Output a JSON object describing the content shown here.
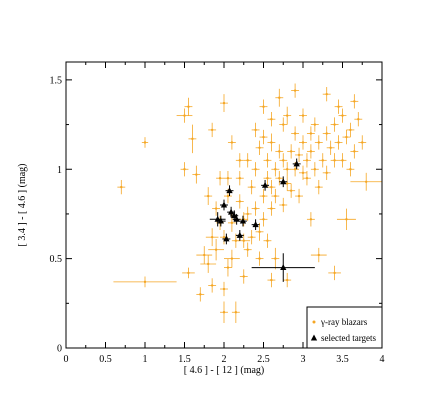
{
  "chart_data": {
    "type": "scatter",
    "xlabel": "[ 4.6 ] - [ 12 ] (mag)",
    "ylabel": "[ 3.4 ] - [ 4.6 ] (mag)",
    "xlim": [
      0,
      4
    ],
    "ylim": [
      0,
      1.6
    ],
    "x_ticks": [
      "0",
      "0.5",
      "1",
      "1.5",
      "2",
      "2.5",
      "3",
      "3.5",
      "4"
    ],
    "y_ticks": [
      "0",
      "0.5",
      "1",
      "1.5"
    ],
    "grid": false,
    "legend_position": "bottom-right",
    "series": [
      {
        "name": "γ-ray blazars",
        "color": "#f5a623",
        "marker": "cross-errorbar",
        "points": [
          [
            0.7,
            0.9,
            0.05,
            0.04
          ],
          [
            1.0,
            1.15,
            0.04,
            0.03
          ],
          [
            1.0,
            0.37,
            0.4,
            0.03
          ],
          [
            1.5,
            1.3,
            0.1,
            0.04
          ],
          [
            1.55,
            1.35,
            0.05,
            0.05
          ],
          [
            1.5,
            1.0,
            0.05,
            0.04
          ],
          [
            1.6,
            1.17,
            0.05,
            0.08
          ],
          [
            1.65,
            0.97,
            0.05,
            0.05
          ],
          [
            1.55,
            0.42,
            0.08,
            0.03
          ],
          [
            1.75,
            0.52,
            0.1,
            0.05
          ],
          [
            1.7,
            0.3,
            0.05,
            0.04
          ],
          [
            1.85,
            1.22,
            0.05,
            0.04
          ],
          [
            1.8,
            0.85,
            0.05,
            0.05
          ],
          [
            1.85,
            0.62,
            0.08,
            0.05
          ],
          [
            1.8,
            0.47,
            0.1,
            0.05
          ],
          [
            1.9,
            0.78,
            0.05,
            0.04
          ],
          [
            1.95,
            0.95,
            0.05,
            0.04
          ],
          [
            1.9,
            0.55,
            0.1,
            0.06
          ],
          [
            2.0,
            1.37,
            0.05,
            0.05
          ],
          [
            2.0,
            0.33,
            0.05,
            0.04
          ],
          [
            2.0,
            0.2,
            0.05,
            0.06
          ],
          [
            2.05,
            0.85,
            0.05,
            0.04
          ],
          [
            2.05,
            0.95,
            0.05,
            0.04
          ],
          [
            2.1,
            0.7,
            0.05,
            0.05
          ],
          [
            2.1,
            0.5,
            0.1,
            0.05
          ],
          [
            2.15,
            0.2,
            0.05,
            0.06
          ],
          [
            2.2,
            0.82,
            0.05,
            0.04
          ],
          [
            2.2,
            0.95,
            0.05,
            0.04
          ],
          [
            2.25,
            0.6,
            0.08,
            0.04
          ],
          [
            2.3,
            1.05,
            0.05,
            0.04
          ],
          [
            2.3,
            0.75,
            0.05,
            0.04
          ],
          [
            2.35,
            0.9,
            0.05,
            0.04
          ],
          [
            2.4,
            1.0,
            0.05,
            0.04
          ],
          [
            2.4,
            0.78,
            0.05,
            0.04
          ],
          [
            2.45,
            1.12,
            0.05,
            0.04
          ],
          [
            2.45,
            0.65,
            0.05,
            0.05
          ],
          [
            2.5,
            1.35,
            0.05,
            0.04
          ],
          [
            2.5,
            0.85,
            0.05,
            0.04
          ],
          [
            2.55,
            0.95,
            0.05,
            0.04
          ],
          [
            2.55,
            1.05,
            0.05,
            0.04
          ],
          [
            2.6,
            1.15,
            0.05,
            0.05
          ],
          [
            2.6,
            0.9,
            0.05,
            0.04
          ],
          [
            2.65,
            1.0,
            0.05,
            0.04
          ],
          [
            2.65,
            0.5,
            0.05,
            0.06
          ],
          [
            2.7,
            1.1,
            0.05,
            0.04
          ],
          [
            2.7,
            0.95,
            0.05,
            0.04
          ],
          [
            2.75,
            1.05,
            0.05,
            0.04
          ],
          [
            2.75,
            1.25,
            0.05,
            0.04
          ],
          [
            2.8,
            1.3,
            0.05,
            0.05
          ],
          [
            2.8,
            1.0,
            0.05,
            0.04
          ],
          [
            2.85,
            1.1,
            0.05,
            0.04
          ],
          [
            2.85,
            0.88,
            0.05,
            0.04
          ],
          [
            2.9,
            1.2,
            0.05,
            0.04
          ],
          [
            2.9,
            1.0,
            0.05,
            0.04
          ],
          [
            2.95,
            1.08,
            0.05,
            0.04
          ],
          [
            3.0,
            1.15,
            0.05,
            0.04
          ],
          [
            3.0,
            1.3,
            0.05,
            0.04
          ],
          [
            3.05,
            1.05,
            0.05,
            0.04
          ],
          [
            3.05,
            0.95,
            0.05,
            0.04
          ],
          [
            3.1,
            1.2,
            0.05,
            0.04
          ],
          [
            3.1,
            1.1,
            0.05,
            0.04
          ],
          [
            3.15,
            1.0,
            0.05,
            0.04
          ],
          [
            3.15,
            1.25,
            0.05,
            0.04
          ],
          [
            3.2,
            1.15,
            0.05,
            0.04
          ],
          [
            3.2,
            0.9,
            0.05,
            0.04
          ],
          [
            3.25,
            1.05,
            0.05,
            0.04
          ],
          [
            3.3,
            1.2,
            0.05,
            0.04
          ],
          [
            3.3,
            0.98,
            0.05,
            0.04
          ],
          [
            3.35,
            1.12,
            0.05,
            0.04
          ],
          [
            3.4,
            1.25,
            0.05,
            0.04
          ],
          [
            3.4,
            1.05,
            0.05,
            0.04
          ],
          [
            3.45,
            1.15,
            0.05,
            0.04
          ],
          [
            3.5,
            1.3,
            0.05,
            0.04
          ],
          [
            3.5,
            1.05,
            0.05,
            0.04
          ],
          [
            3.55,
            1.18,
            0.05,
            0.04
          ],
          [
            3.6,
            1.0,
            0.05,
            0.04
          ],
          [
            3.6,
            1.22,
            0.05,
            0.04
          ],
          [
            3.65,
            1.1,
            0.05,
            0.04
          ],
          [
            3.7,
            1.28,
            0.05,
            0.04
          ],
          [
            3.55,
            0.72,
            0.12,
            0.06
          ],
          [
            3.8,
            0.93,
            0.2,
            0.05
          ],
          [
            3.2,
            0.52,
            0.1,
            0.04
          ],
          [
            3.4,
            0.42,
            0.08,
            0.04
          ],
          [
            3.1,
            0.72,
            0.05,
            0.04
          ],
          [
            2.9,
            1.44,
            0.05,
            0.04
          ],
          [
            2.7,
            1.4,
            0.05,
            0.05
          ],
          [
            3.3,
            1.42,
            0.05,
            0.04
          ],
          [
            2.2,
            1.05,
            0.05,
            0.04
          ],
          [
            2.1,
            1.15,
            0.05,
            0.04
          ],
          [
            1.95,
            0.7,
            0.05,
            0.04
          ],
          [
            2.0,
            0.62,
            0.05,
            0.04
          ],
          [
            2.15,
            0.6,
            0.05,
            0.04
          ],
          [
            2.25,
            0.72,
            0.05,
            0.04
          ],
          [
            2.35,
            0.62,
            0.05,
            0.04
          ],
          [
            2.5,
            0.72,
            0.05,
            0.04
          ],
          [
            2.6,
            0.78,
            0.05,
            0.04
          ],
          [
            2.55,
            0.6,
            0.05,
            0.04
          ],
          [
            2.65,
            0.85,
            0.05,
            0.04
          ],
          [
            2.75,
            0.8,
            0.05,
            0.04
          ],
          [
            2.8,
            0.92,
            0.05,
            0.04
          ],
          [
            2.95,
            0.85,
            0.05,
            0.04
          ],
          [
            3.0,
            0.98,
            0.05,
            0.04
          ],
          [
            2.5,
            1.18,
            0.05,
            0.04
          ],
          [
            2.4,
            1.22,
            0.05,
            0.04
          ],
          [
            2.6,
            1.28,
            0.05,
            0.04
          ],
          [
            2.3,
            0.55,
            0.05,
            0.04
          ],
          [
            2.05,
            0.45,
            0.05,
            0.05
          ],
          [
            2.25,
            0.4,
            0.05,
            0.04
          ],
          [
            1.85,
            0.35,
            0.05,
            0.04
          ],
          [
            2.45,
            0.5,
            0.05,
            0.04
          ],
          [
            2.6,
            0.38,
            0.05,
            0.04
          ],
          [
            2.8,
            0.38,
            0.05,
            0.04
          ],
          [
            3.45,
            1.35,
            0.05,
            0.04
          ],
          [
            3.65,
            1.38,
            0.05,
            0.04
          ],
          [
            3.75,
            1.15,
            0.05,
            0.04
          ]
        ]
      },
      {
        "name": "selected targets",
        "color": "#000000",
        "marker": "triangle",
        "points": [
          [
            1.92,
            0.72,
            0.1,
            0.04
          ],
          [
            1.96,
            0.71,
            0.06,
            0.03
          ],
          [
            2.0,
            0.8,
            0.05,
            0.03
          ],
          [
            2.03,
            0.61,
            0.05,
            0.03
          ],
          [
            2.07,
            0.88,
            0.05,
            0.03
          ],
          [
            2.09,
            0.76,
            0.05,
            0.03
          ],
          [
            2.13,
            0.74,
            0.05,
            0.03
          ],
          [
            2.16,
            0.72,
            0.05,
            0.03
          ],
          [
            2.2,
            0.63,
            0.05,
            0.03
          ],
          [
            2.24,
            0.71,
            0.05,
            0.03
          ],
          [
            2.4,
            0.69,
            0.05,
            0.03
          ],
          [
            2.52,
            0.91,
            0.05,
            0.03
          ],
          [
            2.75,
            0.93,
            0.05,
            0.03
          ],
          [
            2.92,
            1.03,
            0.05,
            0.03
          ],
          [
            2.75,
            0.45,
            0.4,
            0.08
          ]
        ]
      }
    ]
  }
}
